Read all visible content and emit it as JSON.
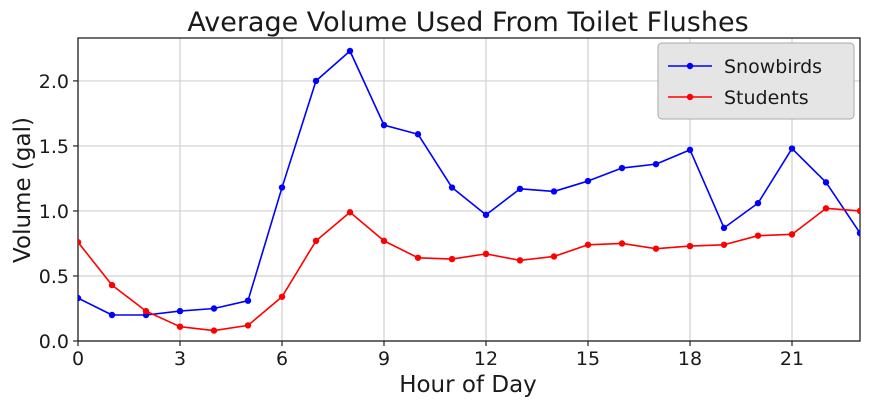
{
  "chart_data": {
    "type": "line",
    "title": "Average Volume Used From Toilet Flushes",
    "xlabel": "Hour of Day",
    "ylabel": "Volume (gal)",
    "xlim": [
      0,
      23
    ],
    "ylim": [
      0.0,
      2.33
    ],
    "xticks": [
      0,
      3,
      6,
      9,
      12,
      15,
      18,
      21
    ],
    "xtick_labels": [
      "0",
      "3",
      "6",
      "9",
      "12",
      "15",
      "18",
      "21"
    ],
    "yticks": [
      0.0,
      0.5,
      1.0,
      1.5,
      2.0
    ],
    "ytick_labels": [
      "0.0",
      "0.5",
      "1.0",
      "1.5",
      "2.0"
    ],
    "grid": true,
    "legend_position": "top-right",
    "x": [
      0,
      1,
      2,
      3,
      4,
      5,
      6,
      7,
      8,
      9,
      10,
      11,
      12,
      13,
      14,
      15,
      16,
      17,
      18,
      19,
      20,
      21,
      22,
      23
    ],
    "series": [
      {
        "name": "Snowbirds",
        "color": "#0000ff",
        "values": [
          0.33,
          0.2,
          0.2,
          0.23,
          0.25,
          0.31,
          1.18,
          2.0,
          2.23,
          1.66,
          1.59,
          1.18,
          0.97,
          1.17,
          1.15,
          1.23,
          1.33,
          1.36,
          1.47,
          0.87,
          1.06,
          1.48,
          1.22,
          0.83
        ]
      },
      {
        "name": "Students",
        "color": "#ff0000",
        "values": [
          0.76,
          0.43,
          0.23,
          0.11,
          0.08,
          0.12,
          0.34,
          0.77,
          0.99,
          0.77,
          0.64,
          0.63,
          0.67,
          0.62,
          0.65,
          0.74,
          0.75,
          0.71,
          0.73,
          0.74,
          0.81,
          0.82,
          1.02,
          1.0
        ]
      }
    ]
  }
}
